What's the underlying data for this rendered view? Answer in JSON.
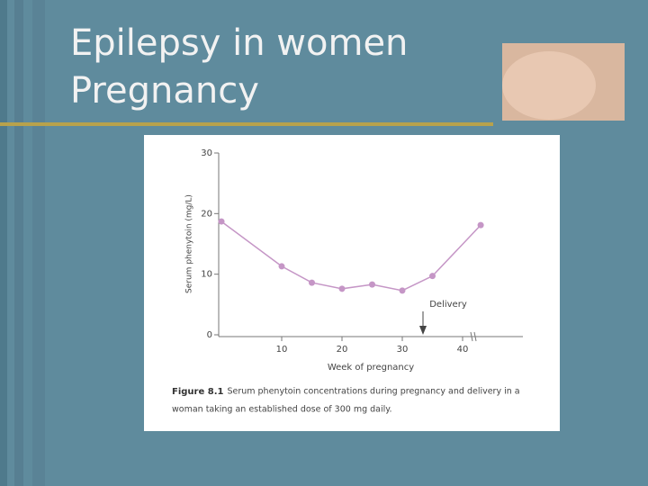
{
  "slide": {
    "title": [
      "Epilepsy in women",
      "Pregnancy"
    ]
  },
  "chart_data": {
    "type": "line",
    "xlabel": "Week of pregnancy",
    "ylabel": "Serum phenytoin (mg/L)",
    "annotation": "Delivery",
    "caption": {
      "label": "Figure 8.1",
      "lines": [
        "Serum phenytoin concentrations during pregnancy and delivery in a",
        "woman taking an established dose of 300 mg daily."
      ]
    },
    "x": [
      0,
      10,
      15,
      20,
      25,
      30,
      35,
      43
    ],
    "series": [
      {
        "color": "#c596c6",
        "values": [
          18.7,
          11.3,
          8.6,
          7.6,
          8.3,
          7.3,
          9.7,
          18.1
        ]
      }
    ],
    "xlim": [
      0,
      50
    ],
    "xticks": [
      10,
      20,
      30,
      40
    ],
    "ylim": [
      0,
      30
    ],
    "yticks": [
      0,
      10,
      20,
      30
    ]
  }
}
